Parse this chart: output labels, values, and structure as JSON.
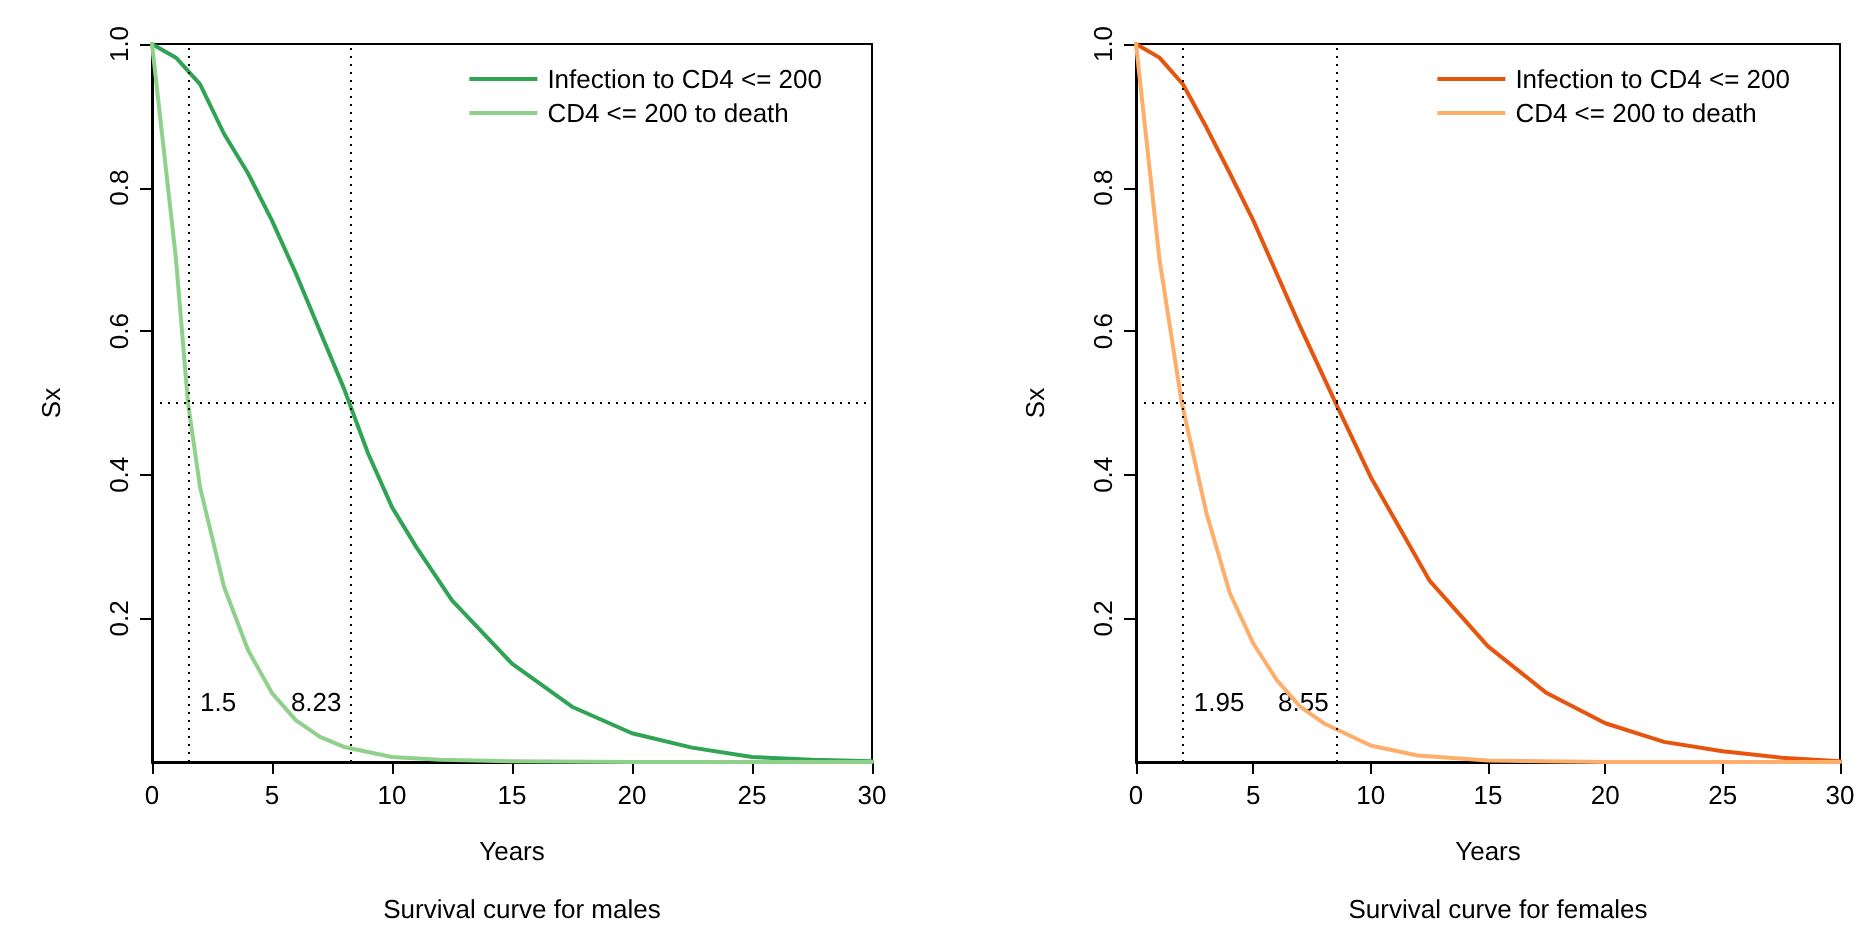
{
  "chart_data": [
    {
      "type": "line",
      "title": "Survival curve for males",
      "xlabel": "Years",
      "ylabel": "Sx",
      "xlim": [
        0,
        30
      ],
      "xticks": [
        0,
        5,
        10,
        15,
        20,
        25,
        30
      ],
      "ylim": [
        0,
        1
      ],
      "yticks": [
        0.2,
        0.4,
        0.6,
        0.8,
        {
          "value": 1,
          "label": "1.0"
        }
      ],
      "legend": "top right",
      "grid": false,
      "marker": "none",
      "line_style": "solid",
      "series": [
        {
          "name": "Infection to CD4 <= 200",
          "color": "#31a354",
          "x": [
            0,
            1,
            2,
            3,
            4,
            5,
            6,
            7,
            8,
            9,
            10,
            11,
            12.5,
            15,
            17.5,
            20,
            22.5,
            25,
            27.5,
            30
          ],
          "values": [
            1,
            0.981,
            0.944,
            0.875,
            0.82,
            0.754,
            0.68,
            0.6,
            0.52,
            0.43,
            0.355,
            0.3,
            0.225,
            0.137,
            0.077,
            0.04,
            0.02,
            0.007,
            0.003,
            0.001
          ]
        },
        {
          "name": "CD4 <= 200 to death",
          "color": "#8fd18a",
          "x": [
            0,
            0.5,
            1,
            1.5,
            2,
            3,
            4,
            5,
            6,
            7,
            8,
            10,
            12,
            15,
            20,
            30
          ],
          "values": [
            1,
            0.85,
            0.7,
            0.5,
            0.383,
            0.244,
            0.156,
            0.096,
            0.058,
            0.035,
            0.021,
            0.007,
            0.003,
            0.001,
            0,
            0
          ]
        }
      ],
      "ref_lines": [
        {
          "axis": "x",
          "value": 1.5,
          "label": "1.5"
        },
        {
          "axis": "x",
          "value": 8.23,
          "label": "8.23"
        },
        {
          "axis": "y",
          "value": 0.5
        }
      ]
    },
    {
      "type": "line",
      "title": "Survival curve for females",
      "xlabel": "Years",
      "ylabel": "Sx",
      "xlim": [
        0,
        30
      ],
      "xticks": [
        0,
        5,
        10,
        15,
        20,
        25,
        30
      ],
      "ylim": [
        0,
        1
      ],
      "yticks": [
        0.2,
        0.4,
        0.6,
        0.8,
        {
          "value": 1,
          "label": "1.0"
        }
      ],
      "legend": "top right",
      "grid": false,
      "marker": "none",
      "line_style": "solid",
      "series": [
        {
          "name": "Infection to CD4 <= 200",
          "color": "#e6550d",
          "x": [
            0,
            1,
            2,
            3,
            4,
            5,
            6,
            7,
            8.55,
            10,
            12.5,
            15,
            17.5,
            20,
            22.5,
            25,
            27.5,
            30
          ],
          "values": [
            1,
            0.981,
            0.944,
            0.884,
            0.82,
            0.754,
            0.68,
            0.606,
            0.497,
            0.397,
            0.253,
            0.161,
            0.096,
            0.054,
            0.028,
            0.015,
            0.006,
            0.001
          ]
        },
        {
          "name": "CD4 <= 200 to death",
          "color": "#fdae6b",
          "x": [
            0,
            0.5,
            1,
            1.95,
            3,
            4,
            5,
            6,
            7,
            8,
            10,
            12,
            15,
            20,
            30
          ],
          "values": [
            1,
            0.85,
            0.7,
            0.5,
            0.347,
            0.235,
            0.165,
            0.114,
            0.077,
            0.054,
            0.023,
            0.009,
            0.002,
            0,
            0
          ]
        }
      ],
      "ref_lines": [
        {
          "axis": "x",
          "value": 1.95,
          "label": "1.95"
        },
        {
          "axis": "x",
          "value": 8.55,
          "label": "8.55"
        },
        {
          "axis": "y",
          "value": 0.5
        }
      ]
    }
  ]
}
